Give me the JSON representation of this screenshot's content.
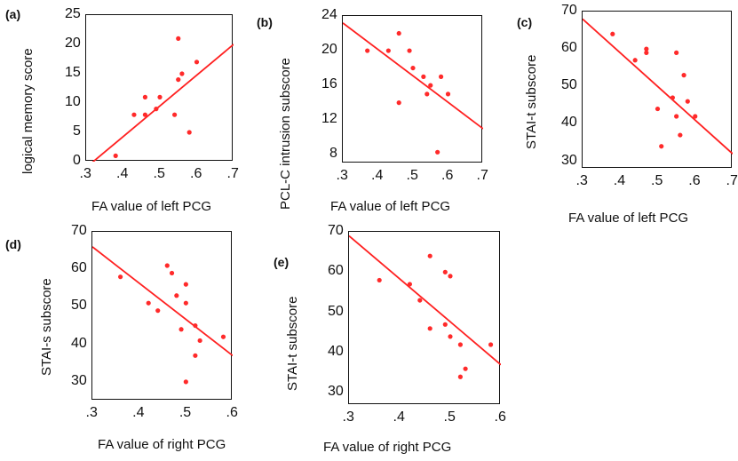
{
  "colors": {
    "points": "#ff2a2a",
    "fit_line": "#ff2020",
    "axes": "#111111"
  },
  "chart_data": [
    {
      "id": "a",
      "type": "scatter",
      "panel_label": "(a)",
      "xlabel": "FA value of left PCG",
      "ylabel": "logical memory score",
      "xlim": [
        0.3,
        0.7
      ],
      "ylim": [
        0,
        25
      ],
      "xticks": [
        ".3",
        ".4",
        ".5",
        ".6",
        ".7"
      ],
      "xtick_values": [
        0.3,
        0.4,
        0.5,
        0.6,
        0.7
      ],
      "yticks": [
        "0",
        "5",
        "10",
        "15",
        "20",
        "25"
      ],
      "ytick_values": [
        0,
        5,
        10,
        15,
        20,
        25
      ],
      "points": [
        [
          0.38,
          1
        ],
        [
          0.43,
          8
        ],
        [
          0.46,
          8
        ],
        [
          0.46,
          11
        ],
        [
          0.49,
          9
        ],
        [
          0.5,
          11
        ],
        [
          0.54,
          8
        ],
        [
          0.55,
          14
        ],
        [
          0.55,
          21
        ],
        [
          0.56,
          15
        ],
        [
          0.58,
          5
        ],
        [
          0.6,
          17
        ]
      ],
      "fit_line": [
        [
          0.3,
          -1
        ],
        [
          0.7,
          20
        ]
      ]
    },
    {
      "id": "b",
      "type": "scatter",
      "panel_label": "(b)",
      "xlabel": "FA value of left PCG",
      "ylabel": "PCL-C intrusion subscore",
      "xlim": [
        0.3,
        0.7
      ],
      "ylim": [
        7,
        24
      ],
      "xticks": [
        ".3",
        ".4",
        ".5",
        ".6",
        ".7"
      ],
      "xtick_values": [
        0.3,
        0.4,
        0.5,
        0.6,
        0.7
      ],
      "yticks": [
        "8",
        "12",
        "16",
        "20",
        "24"
      ],
      "ytick_values": [
        8,
        12,
        16,
        20,
        24
      ],
      "points": [
        [
          0.37,
          20
        ],
        [
          0.43,
          20
        ],
        [
          0.46,
          22
        ],
        [
          0.46,
          14
        ],
        [
          0.49,
          20
        ],
        [
          0.5,
          18
        ],
        [
          0.53,
          17
        ],
        [
          0.54,
          15
        ],
        [
          0.55,
          16
        ],
        [
          0.57,
          8.3
        ],
        [
          0.58,
          17
        ],
        [
          0.6,
          15
        ]
      ],
      "fit_line": [
        [
          0.3,
          23.2
        ],
        [
          0.7,
          11
        ]
      ]
    },
    {
      "id": "c",
      "type": "scatter",
      "panel_label": "(c)",
      "xlabel": "FA value of left PCG",
      "ylabel": "STAI-t subscore",
      "xlim": [
        0.3,
        0.7
      ],
      "ylim": [
        28,
        70
      ],
      "xticks": [
        ".3",
        ".4",
        ".5",
        ".6",
        ".7"
      ],
      "xtick_values": [
        0.3,
        0.4,
        0.5,
        0.6,
        0.7
      ],
      "yticks": [
        "30",
        "40",
        "50",
        "60",
        "70"
      ],
      "ytick_values": [
        30,
        40,
        50,
        60,
        70
      ],
      "points": [
        [
          0.38,
          64
        ],
        [
          0.44,
          57
        ],
        [
          0.47,
          59
        ],
        [
          0.47,
          60
        ],
        [
          0.5,
          44
        ],
        [
          0.51,
          34
        ],
        [
          0.54,
          47
        ],
        [
          0.55,
          42
        ],
        [
          0.55,
          59
        ],
        [
          0.56,
          37
        ],
        [
          0.57,
          53
        ],
        [
          0.58,
          46
        ],
        [
          0.6,
          42
        ]
      ],
      "fit_line": [
        [
          0.3,
          68
        ],
        [
          0.7,
          32
        ]
      ]
    },
    {
      "id": "d",
      "type": "scatter",
      "panel_label": "(d)",
      "xlabel": "FA value of right PCG",
      "ylabel": "STAI-s subscore",
      "xlim": [
        0.3,
        0.6
      ],
      "ylim": [
        25,
        70
      ],
      "xticks": [
        ".3",
        ".4",
        ".5",
        ".6"
      ],
      "xtick_values": [
        0.3,
        0.4,
        0.5,
        0.6
      ],
      "yticks": [
        "30",
        "40",
        "50",
        "60",
        "70"
      ],
      "ytick_values": [
        30,
        40,
        50,
        60,
        70
      ],
      "points": [
        [
          0.36,
          58
        ],
        [
          0.42,
          51
        ],
        [
          0.44,
          49
        ],
        [
          0.46,
          61
        ],
        [
          0.47,
          59
        ],
        [
          0.48,
          53
        ],
        [
          0.49,
          44
        ],
        [
          0.5,
          56
        ],
        [
          0.5,
          51
        ],
        [
          0.5,
          30
        ],
        [
          0.52,
          45
        ],
        [
          0.52,
          37
        ],
        [
          0.53,
          41
        ],
        [
          0.58,
          42
        ]
      ],
      "fit_line": [
        [
          0.3,
          66
        ],
        [
          0.6,
          37
        ]
      ]
    },
    {
      "id": "e",
      "type": "scatter",
      "panel_label": "(e)",
      "xlabel": "FA value of right PCG",
      "ylabel": "STAI-t subscore",
      "xlim": [
        0.3,
        0.6
      ],
      "ylim": [
        27,
        70
      ],
      "xticks": [
        ".3",
        ".4",
        ".5",
        ".6"
      ],
      "xtick_values": [
        0.3,
        0.4,
        0.5,
        0.6
      ],
      "yticks": [
        "30",
        "40",
        "50",
        "60",
        "70"
      ],
      "ytick_values": [
        30,
        40,
        50,
        60,
        70
      ],
      "points": [
        [
          0.36,
          58
        ],
        [
          0.42,
          57
        ],
        [
          0.44,
          53
        ],
        [
          0.46,
          64
        ],
        [
          0.46,
          46
        ],
        [
          0.49,
          60
        ],
        [
          0.5,
          59
        ],
        [
          0.49,
          47
        ],
        [
          0.5,
          44
        ],
        [
          0.52,
          42
        ],
        [
          0.52,
          34
        ],
        [
          0.53,
          36
        ],
        [
          0.58,
          42
        ]
      ],
      "fit_line": [
        [
          0.3,
          69
        ],
        [
          0.6,
          37
        ]
      ]
    }
  ]
}
